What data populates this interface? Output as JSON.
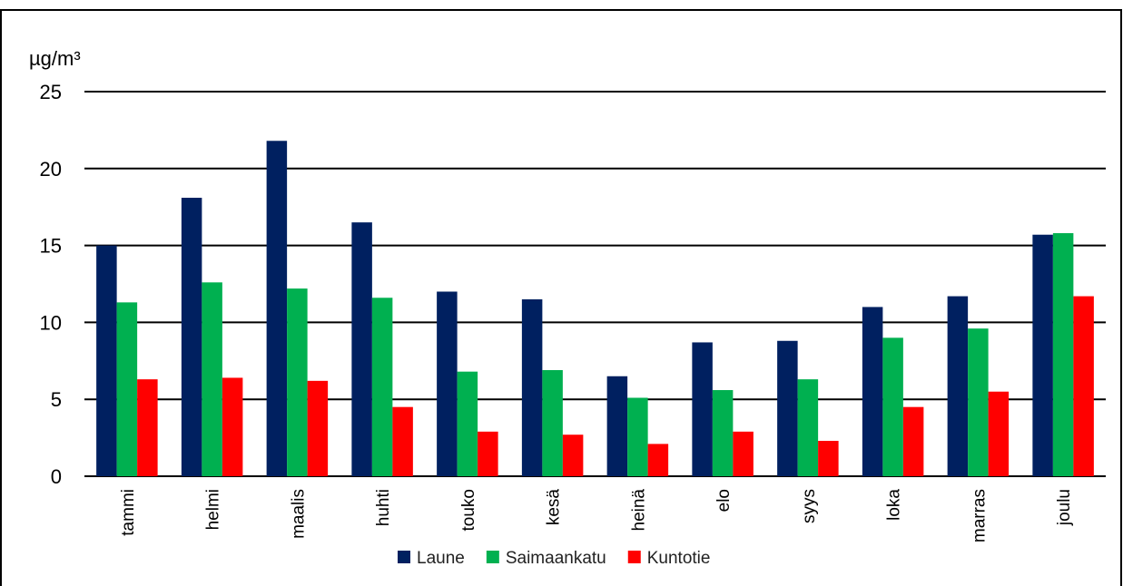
{
  "chart_data": {
    "type": "bar",
    "ylabel": "µg/m³",
    "ylim": [
      0,
      25
    ],
    "yticks": [
      0,
      5,
      10,
      15,
      20,
      25
    ],
    "grid": true,
    "legend_position": "bottom",
    "categories": [
      "tammi",
      "helmi",
      "maalis",
      "huhti",
      "touko",
      "kesä",
      "heinä",
      "elo",
      "syys",
      "loka",
      "marras",
      "joulu"
    ],
    "series": [
      {
        "name": "Laune",
        "color": "#002060",
        "values": [
          15.0,
          18.1,
          21.8,
          16.5,
          12.0,
          11.5,
          6.5,
          8.7,
          8.8,
          11.0,
          11.7,
          15.7
        ]
      },
      {
        "name": "Saimaankatu",
        "color": "#00B050",
        "values": [
          11.3,
          12.6,
          12.2,
          11.6,
          6.8,
          6.9,
          5.1,
          5.6,
          6.3,
          9.0,
          9.6,
          15.8
        ]
      },
      {
        "name": "Kuntotie",
        "color": "#FF0000",
        "values": [
          6.3,
          6.4,
          6.2,
          4.5,
          2.9,
          2.7,
          2.1,
          2.9,
          2.3,
          4.5,
          5.5,
          11.7
        ]
      }
    ]
  }
}
